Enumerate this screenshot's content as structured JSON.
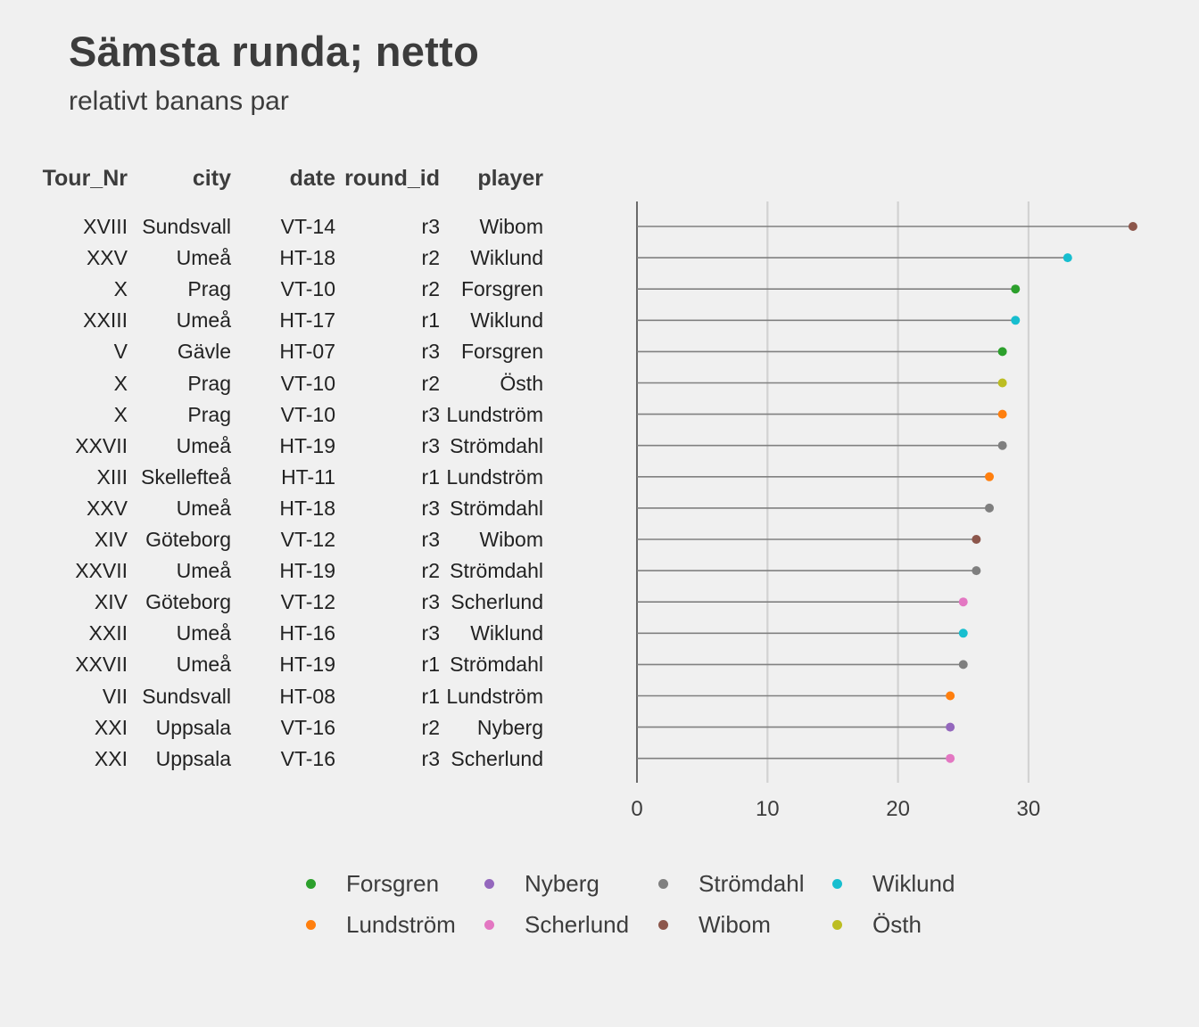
{
  "title": "Sämsta runda; netto",
  "subtitle": "relativt banans par",
  "table": {
    "headers": [
      "Tour_Nr",
      "city",
      "date",
      "round_id",
      "player"
    ],
    "rows": [
      [
        "XVIII",
        "Sundsvall",
        "VT-14",
        "r3",
        "Wibom"
      ],
      [
        "XXV",
        "Umeå",
        "HT-18",
        "r2",
        "Wiklund"
      ],
      [
        "X",
        "Prag",
        "VT-10",
        "r2",
        "Forsgren"
      ],
      [
        "XXIII",
        "Umeå",
        "HT-17",
        "r1",
        "Wiklund"
      ],
      [
        "V",
        "Gävle",
        "HT-07",
        "r3",
        "Forsgren"
      ],
      [
        "X",
        "Prag",
        "VT-10",
        "r2",
        "Östh"
      ],
      [
        "X",
        "Prag",
        "VT-10",
        "r3",
        "Lundström"
      ],
      [
        "XXVII",
        "Umeå",
        "HT-19",
        "r3",
        "Strömdahl"
      ],
      [
        "XIII",
        "Skellefteå",
        "HT-11",
        "r1",
        "Lundström"
      ],
      [
        "XXV",
        "Umeå",
        "HT-18",
        "r3",
        "Strömdahl"
      ],
      [
        "XIV",
        "Göteborg",
        "VT-12",
        "r3",
        "Wibom"
      ],
      [
        "XXVII",
        "Umeå",
        "HT-19",
        "r2",
        "Strömdahl"
      ],
      [
        "XIV",
        "Göteborg",
        "VT-12",
        "r3",
        "Scherlund"
      ],
      [
        "XXII",
        "Umeå",
        "HT-16",
        "r3",
        "Wiklund"
      ],
      [
        "XXVII",
        "Umeå",
        "HT-19",
        "r1",
        "Strömdahl"
      ],
      [
        "VII",
        "Sundsvall",
        "HT-08",
        "r1",
        "Lundström"
      ],
      [
        "XXI",
        "Uppsala",
        "VT-16",
        "r2",
        "Nyberg"
      ],
      [
        "XXI",
        "Uppsala",
        "VT-16",
        "r3",
        "Scherlund"
      ]
    ]
  },
  "chart_data": {
    "type": "lollipop",
    "title": "Sämsta runda; netto",
    "subtitle": "relativt banans par",
    "x_ticks": [
      0,
      10,
      20,
      30
    ],
    "xlim": [
      0,
      38
    ],
    "grid": "vertical",
    "legend_position": "bottom",
    "values": [
      38,
      33,
      29,
      29,
      28,
      28,
      28,
      28,
      27,
      27,
      26,
      26,
      25,
      25,
      25,
      24,
      24,
      24
    ],
    "players": [
      "Wibom",
      "Wiklund",
      "Forsgren",
      "Wiklund",
      "Forsgren",
      "Östh",
      "Lundström",
      "Strömdahl",
      "Lundström",
      "Strömdahl",
      "Wibom",
      "Strömdahl",
      "Scherlund",
      "Wiklund",
      "Strömdahl",
      "Lundström",
      "Nyberg",
      "Scherlund"
    ]
  },
  "legend": {
    "items": [
      {
        "label": "Forsgren",
        "color": "#2ca02c"
      },
      {
        "label": "Lundström",
        "color": "#ff7f0e"
      },
      {
        "label": "Nyberg",
        "color": "#9467bd"
      },
      {
        "label": "Scherlund",
        "color": "#e377c2"
      },
      {
        "label": "Strömdahl",
        "color": "#7f7f7f"
      },
      {
        "label": "Wibom",
        "color": "#8c564b"
      },
      {
        "label": "Wiklund",
        "color": "#17becf"
      },
      {
        "label": "Östh",
        "color": "#bcbd22"
      }
    ]
  },
  "colors": {
    "background": "#f0f0f0",
    "grid": "#d2d2d2",
    "segment": "#808080",
    "axis": "#222222"
  }
}
